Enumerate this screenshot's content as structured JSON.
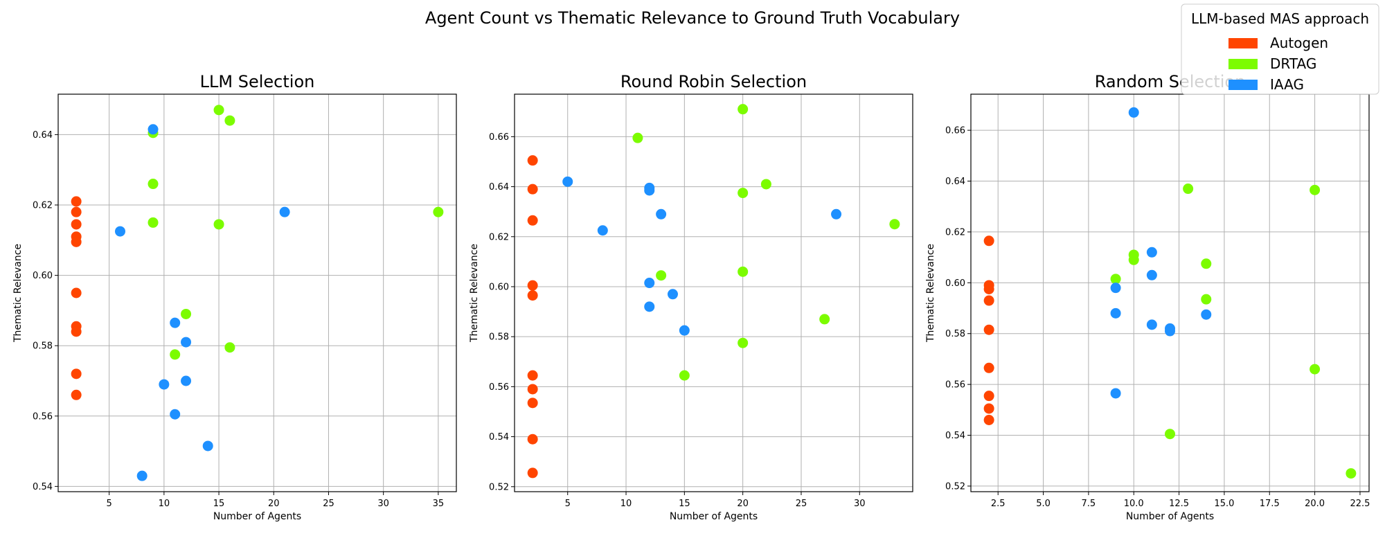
{
  "figure": {
    "suptitle": "Agent Count vs Thematic Relevance to Ground Truth Vocabulary"
  },
  "legend": {
    "title": "LLM-based MAS approach",
    "placement": "top-right",
    "entries": [
      {
        "label": "Autogen",
        "color": "#ff4500"
      },
      {
        "label": "DRTAG",
        "color": "#7cfc00"
      },
      {
        "label": "IAAG",
        "color": "#1e90ff"
      }
    ]
  },
  "chart_data": [
    {
      "type": "scatter",
      "title": "LLM Selection",
      "xlabel": "Number of Agents",
      "ylabel": "Thematic Relevance",
      "xlim": [
        0.35,
        36.65
      ],
      "ylim": [
        0.5385,
        0.6515
      ],
      "xticks": [
        5,
        10,
        15,
        20,
        25,
        30,
        35
      ],
      "xtick_labels": [
        "5",
        "10",
        "15",
        "20",
        "25",
        "30",
        "35"
      ],
      "yticks": [
        0.54,
        0.56,
        0.58,
        0.6,
        0.62,
        0.64
      ],
      "ytick_labels": [
        "0.54",
        "0.56",
        "0.58",
        "0.60",
        "0.62",
        "0.64"
      ],
      "grid": true,
      "series": [
        {
          "name": "Autogen",
          "color": "#ff4500",
          "points": [
            [
              2,
              0.621
            ],
            [
              2,
              0.618
            ],
            [
              2,
              0.6145
            ],
            [
              2,
              0.611
            ],
            [
              2,
              0.6095
            ],
            [
              2,
              0.595
            ],
            [
              2,
              0.5855
            ],
            [
              2,
              0.584
            ],
            [
              2,
              0.572
            ],
            [
              2,
              0.566
            ]
          ]
        },
        {
          "name": "DRTAG",
          "color": "#7cfc00",
          "points": [
            [
              9,
              0.6405
            ],
            [
              9,
              0.626
            ],
            [
              9,
              0.615
            ],
            [
              15,
              0.647
            ],
            [
              16,
              0.644
            ],
            [
              15,
              0.6145
            ],
            [
              35,
              0.618
            ],
            [
              12,
              0.589
            ],
            [
              11,
              0.5775
            ],
            [
              16,
              0.5795
            ]
          ]
        },
        {
          "name": "IAAG",
          "color": "#1e90ff",
          "points": [
            [
              9,
              0.6415
            ],
            [
              6,
              0.6125
            ],
            [
              21,
              0.618
            ],
            [
              11,
              0.5865
            ],
            [
              12,
              0.581
            ],
            [
              10,
              0.569
            ],
            [
              12,
              0.57
            ],
            [
              11,
              0.5605
            ],
            [
              14,
              0.5515
            ],
            [
              8,
              0.543
            ]
          ]
        }
      ]
    },
    {
      "type": "scatter",
      "title": "Round Robin Selection",
      "xlabel": "Number of Agents",
      "ylabel": "Thematic Relevance",
      "xlim": [
        0.45,
        34.55
      ],
      "ylim": [
        0.518,
        0.677
      ],
      "xticks": [
        5,
        10,
        15,
        20,
        25,
        30
      ],
      "xtick_labels": [
        "5",
        "10",
        "15",
        "20",
        "25",
        "30"
      ],
      "yticks": [
        0.52,
        0.54,
        0.56,
        0.58,
        0.6,
        0.62,
        0.64,
        0.66
      ],
      "ytick_labels": [
        "0.52",
        "0.54",
        "0.56",
        "0.58",
        "0.60",
        "0.62",
        "0.64",
        "0.66"
      ],
      "grid": true,
      "series": [
        {
          "name": "Autogen",
          "color": "#ff4500",
          "points": [
            [
              2,
              0.6505
            ],
            [
              2,
              0.639
            ],
            [
              2,
              0.6265
            ],
            [
              2,
              0.6005
            ],
            [
              2,
              0.5965
            ],
            [
              2,
              0.5645
            ],
            [
              2,
              0.559
            ],
            [
              2,
              0.5535
            ],
            [
              2,
              0.539
            ],
            [
              2,
              0.5255
            ]
          ]
        },
        {
          "name": "DRTAG",
          "color": "#7cfc00",
          "points": [
            [
              20,
              0.671
            ],
            [
              11,
              0.6595
            ],
            [
              22,
              0.641
            ],
            [
              20,
              0.6375
            ],
            [
              33,
              0.625
            ],
            [
              13,
              0.6045
            ],
            [
              20,
              0.606
            ],
            [
              27,
              0.587
            ],
            [
              20,
              0.5775
            ],
            [
              15,
              0.5645
            ]
          ]
        },
        {
          "name": "IAAG",
          "color": "#1e90ff",
          "points": [
            [
              5,
              0.642
            ],
            [
              12,
              0.6395
            ],
            [
              12,
              0.6385
            ],
            [
              13,
              0.629
            ],
            [
              28,
              0.629
            ],
            [
              8,
              0.6225
            ],
            [
              12,
              0.6015
            ],
            [
              14,
              0.597
            ],
            [
              12,
              0.592
            ],
            [
              15,
              0.5825
            ]
          ]
        }
      ]
    },
    {
      "type": "scatter",
      "title": "Random Selection",
      "xlabel": "Number of Agents",
      "ylabel": "Thematic Relevance",
      "xlim": [
        1.0,
        23.0
      ],
      "ylim": [
        0.5178,
        0.6742
      ],
      "xticks": [
        2.5,
        5.0,
        7.5,
        10.0,
        12.5,
        15.0,
        17.5,
        20.0,
        22.5
      ],
      "xtick_labels": [
        "2.5",
        "5.0",
        "7.5",
        "10.0",
        "12.5",
        "15.0",
        "17.5",
        "20.0",
        "22.5"
      ],
      "yticks": [
        0.52,
        0.54,
        0.56,
        0.58,
        0.6,
        0.62,
        0.64,
        0.66
      ],
      "ytick_labels": [
        "0.52",
        "0.54",
        "0.56",
        "0.58",
        "0.60",
        "0.62",
        "0.64",
        "0.66"
      ],
      "grid": true,
      "series": [
        {
          "name": "Autogen",
          "color": "#ff4500",
          "points": [
            [
              2,
              0.6165
            ],
            [
              2,
              0.599
            ],
            [
              2,
              0.5975
            ],
            [
              2,
              0.593
            ],
            [
              2,
              0.5815
            ],
            [
              2,
              0.5665
            ],
            [
              2,
              0.5555
            ],
            [
              2,
              0.5505
            ],
            [
              2,
              0.546
            ]
          ]
        },
        {
          "name": "DRTAG",
          "color": "#7cfc00",
          "points": [
            [
              13,
              0.637
            ],
            [
              20,
              0.6365
            ],
            [
              10,
              0.611
            ],
            [
              10,
              0.609
            ],
            [
              9,
              0.6015
            ],
            [
              14,
              0.6075
            ],
            [
              14,
              0.5935
            ],
            [
              20,
              0.566
            ],
            [
              12,
              0.5405
            ],
            [
              22,
              0.525
            ]
          ]
        },
        {
          "name": "IAAG",
          "color": "#1e90ff",
          "points": [
            [
              10,
              0.667
            ],
            [
              11,
              0.612
            ],
            [
              11,
              0.603
            ],
            [
              9,
              0.598
            ],
            [
              9,
              0.588
            ],
            [
              14,
              0.5875
            ],
            [
              11,
              0.5835
            ],
            [
              12,
              0.582
            ],
            [
              12,
              0.581
            ],
            [
              9,
              0.5565
            ]
          ]
        }
      ]
    }
  ]
}
